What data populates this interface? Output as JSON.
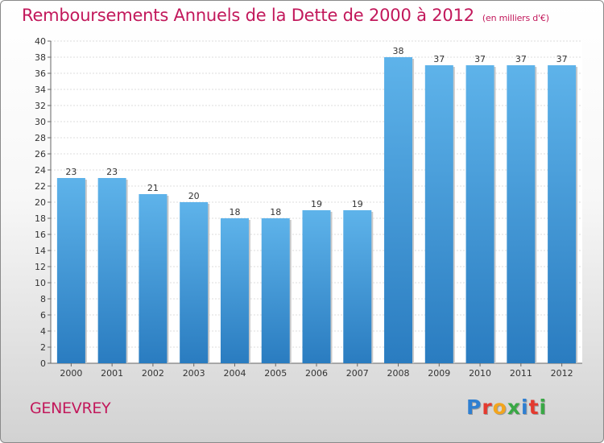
{
  "title": "Remboursements Annuels de la Dette de 2000 à 2012",
  "subtitle": "(en milliers d'€)",
  "commune": "GENEVREY",
  "logo": {
    "letters": [
      "P",
      "r",
      "o",
      "x",
      "i",
      "t",
      "i"
    ],
    "colors": [
      "#2f7fd1",
      "#e43a2f",
      "#f2a51e",
      "#39a845",
      "#2f7fd1",
      "#e43a2f",
      "#39a845"
    ]
  },
  "colors": {
    "title": "#c2185b",
    "bar_light": "#5eb3ea",
    "bar_dark": "#2a7cc0"
  },
  "chart_data": {
    "type": "bar",
    "categories": [
      "2000",
      "2001",
      "2002",
      "2003",
      "2004",
      "2005",
      "2006",
      "2007",
      "2008",
      "2009",
      "2010",
      "2011",
      "2012"
    ],
    "values": [
      23,
      23,
      21,
      20,
      18,
      18,
      19,
      19,
      38,
      37,
      37,
      37,
      37
    ],
    "ylim": [
      0,
      40
    ],
    "yticks": [
      0,
      2,
      4,
      6,
      8,
      10,
      12,
      14,
      16,
      18,
      20,
      22,
      24,
      26,
      28,
      30,
      32,
      34,
      36,
      38,
      40
    ],
    "grid": true
  }
}
